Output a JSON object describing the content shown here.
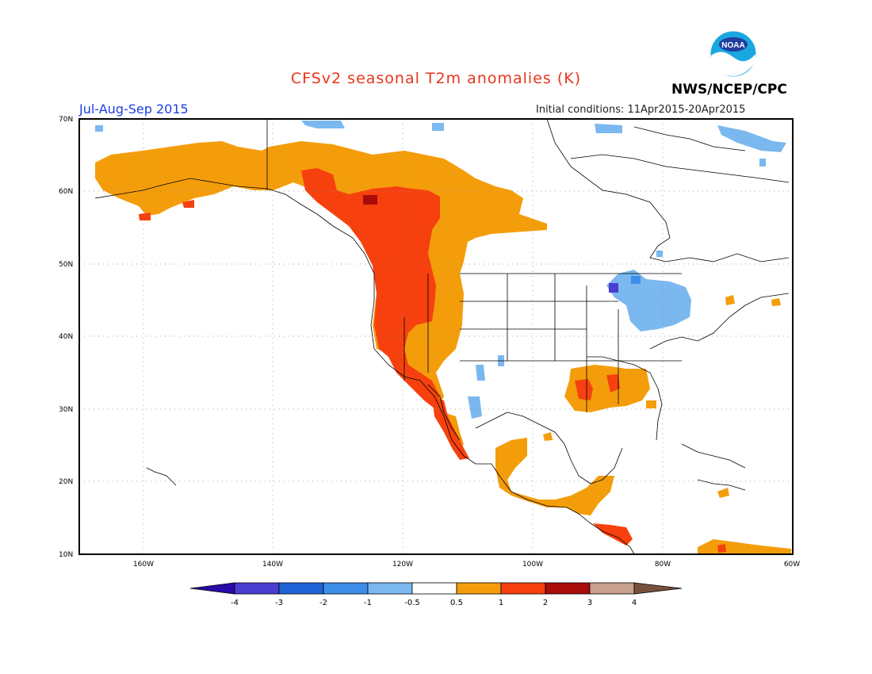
{
  "title": "CFSv2 seasonal T2m anomalies (K)",
  "period": "Jul-Aug-Sep 2015",
  "initial_conditions": "Initial conditions: 11Apr2015-20Apr2015",
  "agency": "NWS/NCEP/CPC",
  "logo_text": "NOAA",
  "colors": {
    "title": "#e8351c",
    "period": "#1f3ee6",
    "anom_neg4": "#2a0aa8",
    "anom_neg3": "#4a3ccf",
    "anom_neg2": "#1f64d6",
    "anom_neg1": "#3c8ee8",
    "anom_neg05": "#7ab8ef",
    "anom_pos05": "#f49d0b",
    "anom_pos1": "#f6410f",
    "anom_pos2": "#a90b0b",
    "anom_pos3": "#c8a08e",
    "anom_pos4": "#77513c"
  },
  "map": {
    "lat_labels": [
      "70N",
      "60N",
      "50N",
      "40N",
      "30N",
      "20N",
      "10N"
    ],
    "lon_labels": [
      "160W",
      "140W",
      "120W",
      "100W",
      "80W",
      "60W"
    ]
  },
  "colorbar": {
    "labels": [
      "-4",
      "-3",
      "-2",
      "-1",
      "-0.5",
      "0.5",
      "1",
      "2",
      "3",
      "4"
    ]
  }
}
